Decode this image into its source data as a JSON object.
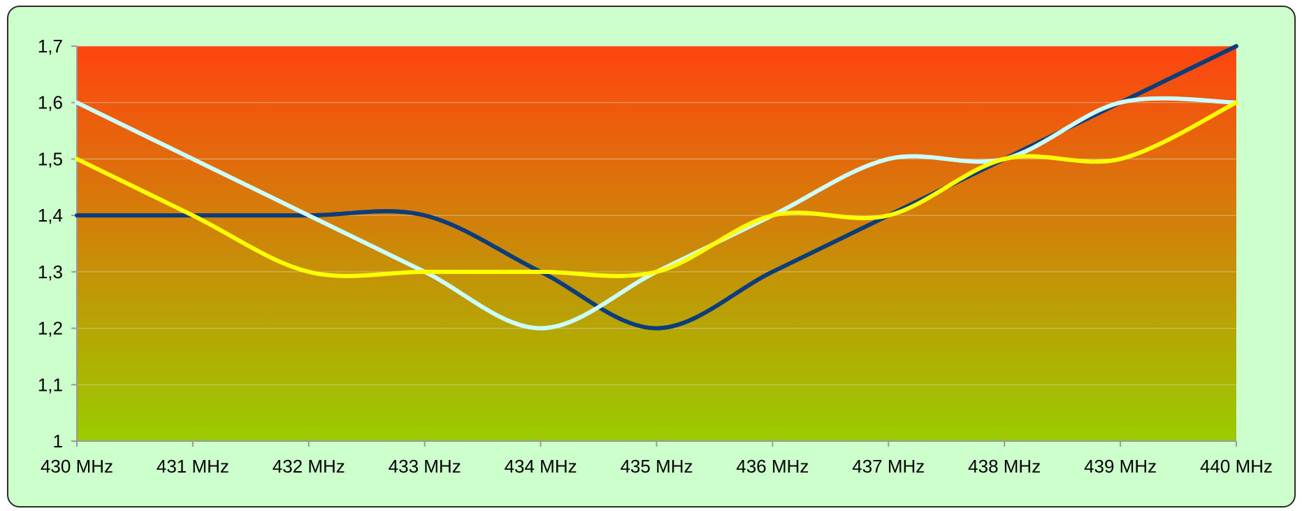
{
  "chart_data": {
    "type": "line",
    "title": "",
    "xlabel": "",
    "ylabel": "",
    "categories": [
      "430 MHz",
      "431 MHz",
      "432 MHz",
      "433 MHz",
      "434 MHz",
      "435 MHz",
      "436 MHz",
      "437 MHz",
      "438 MHz",
      "439 MHz",
      "440 MHz"
    ],
    "ylim": [
      1,
      1.7
    ],
    "yticks": [
      "1",
      "1,1",
      "1,2",
      "1,3",
      "1,4",
      "1,5",
      "1,6",
      "1,7"
    ],
    "yticks_values": [
      1,
      1.1,
      1.2,
      1.3,
      1.4,
      1.5,
      1.6,
      1.7
    ],
    "grid": true,
    "legend": "none",
    "background_gradient": {
      "top": "#ff4410",
      "bottom": "#99cc00"
    },
    "series": [
      {
        "color": "#0a3d7a",
        "values": [
          1.4,
          1.4,
          1.4,
          1.4,
          1.3,
          1.2,
          1.3,
          1.4,
          1.5,
          1.6,
          1.7
        ]
      },
      {
        "color": "#ccffff",
        "values": [
          1.6,
          1.5,
          1.4,
          1.3,
          1.2,
          1.3,
          1.4,
          1.5,
          1.5,
          1.6,
          1.6
        ]
      },
      {
        "color": "#ffff00",
        "values": [
          1.5,
          1.4,
          1.3,
          1.3,
          1.3,
          1.3,
          1.4,
          1.4,
          1.5,
          1.5,
          1.6
        ]
      }
    ]
  }
}
